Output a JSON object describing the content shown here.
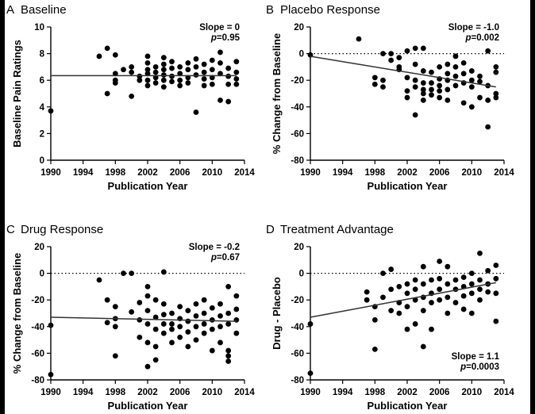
{
  "chart_data": [
    {
      "type": "scatter",
      "panel_letter": "A",
      "title": "Baseline",
      "xlabel": "Publication Year",
      "ylabel": "Baseline Pain Ratings",
      "xlim": [
        1990,
        2014
      ],
      "ylim": [
        0,
        10
      ],
      "xticks": [
        1990,
        1994,
        1998,
        2002,
        2006,
        2010,
        2014
      ],
      "yticks": [
        0,
        2,
        4,
        6,
        8,
        10
      ],
      "zero_line": false,
      "slope_text": "Slope = 0",
      "p_text": "p=0.95",
      "stats_position": "top-right",
      "trend": {
        "x": [
          1990,
          2013
        ],
        "y": [
          6.35,
          6.35
        ]
      },
      "points": [
        [
          1990,
          3.7
        ],
        [
          1996,
          7.8
        ],
        [
          1997,
          8.4
        ],
        [
          1997,
          5.0
        ],
        [
          1998,
          7.9
        ],
        [
          1998,
          6.5
        ],
        [
          1998,
          6.0
        ],
        [
          1998,
          5.8
        ],
        [
          1999,
          6.8
        ],
        [
          2000,
          7.0
        ],
        [
          2000,
          6.6
        ],
        [
          2000,
          4.8
        ],
        [
          2001,
          6.3
        ],
        [
          2001,
          6.0
        ],
        [
          2002,
          7.8
        ],
        [
          2002,
          7.3
        ],
        [
          2002,
          6.8
        ],
        [
          2002,
          6.5
        ],
        [
          2002,
          6.0
        ],
        [
          2002,
          5.6
        ],
        [
          2003,
          7.0
        ],
        [
          2003,
          6.6
        ],
        [
          2003,
          6.2
        ],
        [
          2003,
          5.8
        ],
        [
          2004,
          7.7
        ],
        [
          2004,
          7.2
        ],
        [
          2004,
          6.8
        ],
        [
          2004,
          6.4
        ],
        [
          2004,
          6.0
        ],
        [
          2004,
          5.5
        ],
        [
          2005,
          7.4
        ],
        [
          2005,
          6.9
        ],
        [
          2005,
          6.3
        ],
        [
          2005,
          5.9
        ],
        [
          2006,
          7.0
        ],
        [
          2006,
          6.5
        ],
        [
          2006,
          6.0
        ],
        [
          2006,
          5.6
        ],
        [
          2007,
          7.3
        ],
        [
          2007,
          6.8
        ],
        [
          2007,
          6.2
        ],
        [
          2007,
          5.8
        ],
        [
          2008,
          7.6
        ],
        [
          2008,
          7.0
        ],
        [
          2008,
          6.4
        ],
        [
          2008,
          3.6
        ],
        [
          2009,
          7.2
        ],
        [
          2009,
          6.6
        ],
        [
          2009,
          6.1
        ],
        [
          2009,
          5.6
        ],
        [
          2010,
          7.5
        ],
        [
          2010,
          6.8
        ],
        [
          2010,
          6.2
        ],
        [
          2010,
          5.7
        ],
        [
          2011,
          8.1
        ],
        [
          2011,
          7.3
        ],
        [
          2011,
          6.5
        ],
        [
          2011,
          4.5
        ],
        [
          2012,
          6.9
        ],
        [
          2012,
          6.3
        ],
        [
          2012,
          5.7
        ],
        [
          2012,
          4.4
        ],
        [
          2013,
          7.4
        ],
        [
          2013,
          6.6
        ],
        [
          2013,
          6.1
        ],
        [
          2013,
          5.7
        ]
      ]
    },
    {
      "type": "scatter",
      "panel_letter": "B",
      "title": "Placebo Response",
      "xlabel": "Publication Year",
      "ylabel": "% Change from Baseline",
      "xlim": [
        1990,
        2014
      ],
      "ylim": [
        -80,
        20
      ],
      "xticks": [
        1990,
        1994,
        1998,
        2002,
        2006,
        2010,
        2014
      ],
      "yticks": [
        -80,
        -60,
        -40,
        -20,
        0,
        20
      ],
      "zero_line": true,
      "slope_text": "Slope = -1.0",
      "p_text": "p=0.002",
      "stats_position": "top-right",
      "trend": {
        "x": [
          1990,
          2013
        ],
        "y": [
          -2,
          -25
        ]
      },
      "points": [
        [
          1990,
          -1
        ],
        [
          1996,
          11
        ],
        [
          1998,
          -23
        ],
        [
          1998,
          -18
        ],
        [
          1999,
          -25
        ],
        [
          1999,
          -20
        ],
        [
          1999,
          0
        ],
        [
          2000,
          0
        ],
        [
          2000,
          -5
        ],
        [
          2001,
          -10
        ],
        [
          2001,
          -3
        ],
        [
          2001,
          -12
        ],
        [
          2002,
          2
        ],
        [
          2002,
          -18
        ],
        [
          2002,
          -28
        ],
        [
          2002,
          -33
        ],
        [
          2003,
          4
        ],
        [
          2003,
          -8
        ],
        [
          2003,
          -20
        ],
        [
          2003,
          -25
        ],
        [
          2003,
          -46
        ],
        [
          2004,
          4
        ],
        [
          2004,
          -13
        ],
        [
          2004,
          -22
        ],
        [
          2004,
          -27
        ],
        [
          2004,
          -30
        ],
        [
          2004,
          -35
        ],
        [
          2005,
          -14
        ],
        [
          2005,
          -22
        ],
        [
          2005,
          -27
        ],
        [
          2005,
          -31
        ],
        [
          2006,
          -10
        ],
        [
          2006,
          -19
        ],
        [
          2006,
          -24
        ],
        [
          2006,
          -28
        ],
        [
          2006,
          -33
        ],
        [
          2007,
          -8
        ],
        [
          2007,
          -15
        ],
        [
          2007,
          -20
        ],
        [
          2007,
          -27
        ],
        [
          2007,
          -35
        ],
        [
          2008,
          -2
        ],
        [
          2008,
          -10
        ],
        [
          2008,
          -17
        ],
        [
          2008,
          -24
        ],
        [
          2009,
          -7
        ],
        [
          2009,
          -15
        ],
        [
          2009,
          -22
        ],
        [
          2009,
          -37
        ],
        [
          2010,
          -13
        ],
        [
          2010,
          -20
        ],
        [
          2010,
          -25
        ],
        [
          2010,
          -40
        ],
        [
          2011,
          -17
        ],
        [
          2011,
          -21
        ],
        [
          2011,
          -33
        ],
        [
          2012,
          2
        ],
        [
          2012,
          -24
        ],
        [
          2012,
          -35
        ],
        [
          2012,
          -55
        ],
        [
          2013,
          -10
        ],
        [
          2013,
          -14
        ],
        [
          2013,
          -30
        ],
        [
          2013,
          -33
        ]
      ]
    },
    {
      "type": "scatter",
      "panel_letter": "C",
      "title": "Drug Response",
      "xlabel": "Publication Year",
      "ylabel": "% Change from Baseline",
      "xlim": [
        1990,
        2014
      ],
      "ylim": [
        -80,
        20
      ],
      "xticks": [
        1990,
        1994,
        1998,
        2002,
        2006,
        2010,
        2014
      ],
      "yticks": [
        -80,
        -60,
        -40,
        -20,
        0,
        20
      ],
      "zero_line": true,
      "slope_text": "Slope = -0.2",
      "p_text": "p=0.67",
      "stats_position": "top-right",
      "trend": {
        "x": [
          1990,
          2013
        ],
        "y": [
          -33,
          -36
        ]
      },
      "points": [
        [
          1990,
          -39
        ],
        [
          1990,
          -76
        ],
        [
          1996,
          -5
        ],
        [
          1997,
          -20
        ],
        [
          1997,
          -37
        ],
        [
          1998,
          -25
        ],
        [
          1998,
          -34
        ],
        [
          1998,
          -40
        ],
        [
          1998,
          -62
        ],
        [
          1999,
          0
        ],
        [
          2000,
          0
        ],
        [
          2000,
          -29
        ],
        [
          2001,
          -22
        ],
        [
          2001,
          -35
        ],
        [
          2001,
          -48
        ],
        [
          2002,
          -10
        ],
        [
          2002,
          -17
        ],
        [
          2002,
          -28
        ],
        [
          2002,
          -38
        ],
        [
          2002,
          -52
        ],
        [
          2002,
          -70
        ],
        [
          2003,
          -20
        ],
        [
          2003,
          -33
        ],
        [
          2003,
          -42
        ],
        [
          2003,
          -55
        ],
        [
          2003,
          -65
        ],
        [
          2004,
          1
        ],
        [
          2004,
          -23
        ],
        [
          2004,
          -31
        ],
        [
          2004,
          -38
        ],
        [
          2004,
          -45
        ],
        [
          2005,
          -30
        ],
        [
          2005,
          -38
        ],
        [
          2005,
          -42
        ],
        [
          2005,
          -52
        ],
        [
          2006,
          -25
        ],
        [
          2006,
          -34
        ],
        [
          2006,
          -40
        ],
        [
          2006,
          -48
        ],
        [
          2007,
          -28
        ],
        [
          2007,
          -36
        ],
        [
          2007,
          -44
        ],
        [
          2007,
          -55
        ],
        [
          2008,
          -23
        ],
        [
          2008,
          -32
        ],
        [
          2008,
          -40
        ],
        [
          2008,
          -50
        ],
        [
          2009,
          -20
        ],
        [
          2009,
          -30
        ],
        [
          2009,
          -38
        ],
        [
          2009,
          -45
        ],
        [
          2010,
          -26
        ],
        [
          2010,
          -35
        ],
        [
          2010,
          -42
        ],
        [
          2010,
          -58
        ],
        [
          2011,
          -23
        ],
        [
          2011,
          -32
        ],
        [
          2011,
          -40
        ],
        [
          2011,
          -52
        ],
        [
          2012,
          -10
        ],
        [
          2012,
          -30
        ],
        [
          2012,
          -38
        ],
        [
          2012,
          -58
        ],
        [
          2012,
          -62
        ],
        [
          2012,
          -66
        ],
        [
          2013,
          -17
        ],
        [
          2013,
          -27
        ],
        [
          2013,
          -35
        ],
        [
          2013,
          -45
        ]
      ]
    },
    {
      "type": "scatter",
      "panel_letter": "D",
      "title": "Treatment Advantage",
      "xlabel": "Publication Year",
      "ylabel": "Drug - Placebo",
      "xlim": [
        1990,
        2014
      ],
      "ylim": [
        -80,
        20
      ],
      "xticks": [
        1990,
        1994,
        1998,
        2002,
        2006,
        2010,
        2014
      ],
      "yticks": [
        -80,
        -60,
        -40,
        -20,
        0,
        20
      ],
      "zero_line": true,
      "slope_text": "Slope = 1.1",
      "p_text": "p=0.0003",
      "stats_position": "bottom-right",
      "trend": {
        "x": [
          1990,
          2013
        ],
        "y": [
          -33,
          -7
        ]
      },
      "points": [
        [
          1990,
          -38
        ],
        [
          1990,
          -75
        ],
        [
          1997,
          -14
        ],
        [
          1997,
          -20
        ],
        [
          1998,
          -25
        ],
        [
          1998,
          -35
        ],
        [
          1998,
          -57
        ],
        [
          1999,
          -18
        ],
        [
          1999,
          0
        ],
        [
          2000,
          3
        ],
        [
          2000,
          -12
        ],
        [
          2000,
          -28
        ],
        [
          2001,
          -10
        ],
        [
          2001,
          -22
        ],
        [
          2001,
          -30
        ],
        [
          2002,
          -8
        ],
        [
          2002,
          -15
        ],
        [
          2002,
          -25
        ],
        [
          2002,
          -42
        ],
        [
          2003,
          -5
        ],
        [
          2003,
          -12
        ],
        [
          2003,
          -20
        ],
        [
          2003,
          -38
        ],
        [
          2004,
          5
        ],
        [
          2004,
          -8
        ],
        [
          2004,
          -18
        ],
        [
          2004,
          -28
        ],
        [
          2004,
          -55
        ],
        [
          2005,
          -5
        ],
        [
          2005,
          -15
        ],
        [
          2005,
          -22
        ],
        [
          2005,
          -42
        ],
        [
          2006,
          9
        ],
        [
          2006,
          -4
        ],
        [
          2006,
          -12
        ],
        [
          2006,
          -20
        ],
        [
          2007,
          5
        ],
        [
          2007,
          -8
        ],
        [
          2007,
          -18
        ],
        [
          2007,
          -30
        ],
        [
          2008,
          -5
        ],
        [
          2008,
          -12
        ],
        [
          2008,
          -22
        ],
        [
          2009,
          -3
        ],
        [
          2009,
          -10
        ],
        [
          2009,
          -17
        ],
        [
          2009,
          -27
        ],
        [
          2010,
          0
        ],
        [
          2010,
          -8
        ],
        [
          2010,
          -15
        ],
        [
          2010,
          -30
        ],
        [
          2011,
          15
        ],
        [
          2011,
          -5
        ],
        [
          2011,
          -12
        ],
        [
          2011,
          -20
        ],
        [
          2012,
          2
        ],
        [
          2012,
          -8
        ],
        [
          2012,
          -14
        ],
        [
          2013,
          6
        ],
        [
          2013,
          -4
        ],
        [
          2013,
          -15
        ],
        [
          2013,
          -36
        ]
      ]
    }
  ]
}
